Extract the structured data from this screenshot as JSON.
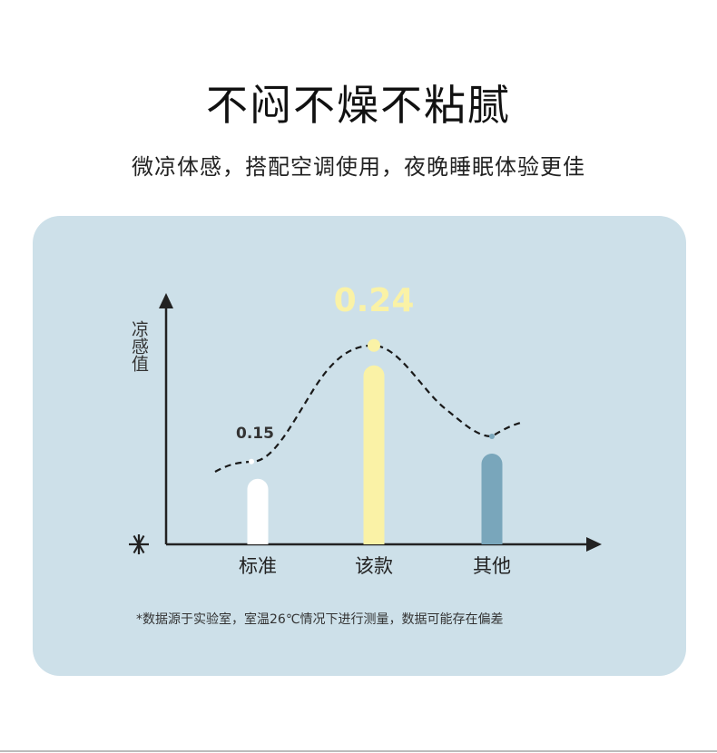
{
  "header": {
    "title": "不闷不燥不粘腻",
    "subtitle": "微凉体感，搭配空调使用，夜晚睡眠体验更佳"
  },
  "chart_data": {
    "type": "bar",
    "ylabel": "凉感值",
    "categories": [
      "标准",
      "该款",
      "其他"
    ],
    "values": [
      0.15,
      0.24,
      0.17
    ],
    "data_labels": [
      "0.15",
      "0.24",
      ""
    ],
    "colors": [
      "#ffffff",
      "#faf2a6",
      "#79a6bb"
    ],
    "trend_line": "dashed",
    "grid": false,
    "legend": "none"
  },
  "footnote": "*数据源于实验室，室温26℃情况下进行测量，数据可能存在偏差",
  "icons": {
    "axis_origin": "snowflake-icon"
  },
  "colors": {
    "card": "#cde0e9",
    "highlight": "#faf2a6"
  }
}
